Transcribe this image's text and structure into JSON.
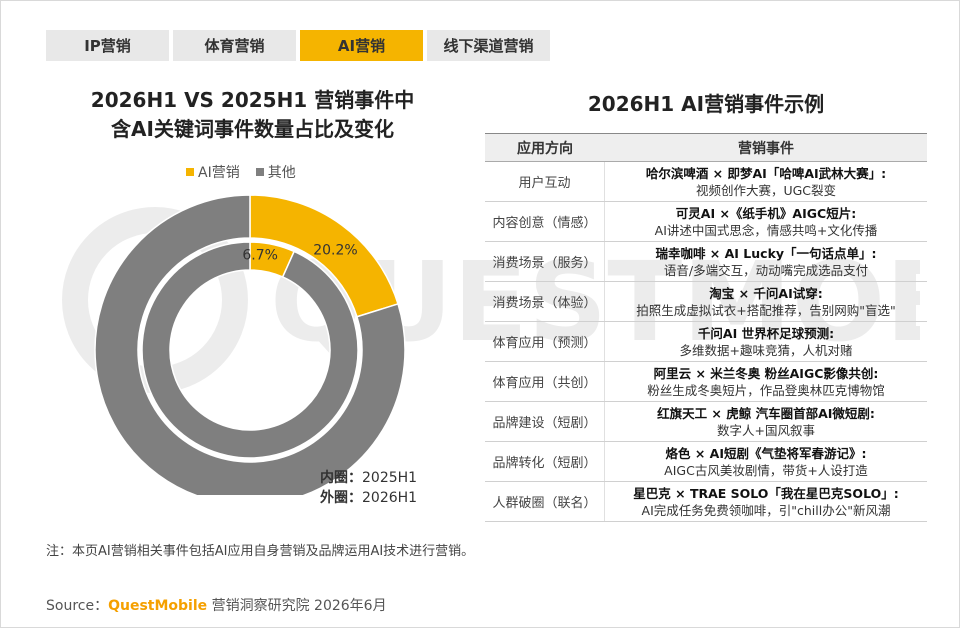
{
  "tabs": [
    {
      "label": "IP营销",
      "active": false
    },
    {
      "label": "体育营销",
      "active": false
    },
    {
      "label": "AI营销",
      "active": true
    },
    {
      "label": "线下渠道营销",
      "active": false
    }
  ],
  "watermark_text": "QUESTMOBILE",
  "chart_data": {
    "type": "pie",
    "title": "2026H1 VS 2025H1 营销事件中含AI关键词事件数量占比及变化",
    "title_lines": [
      "2026H1 VS 2025H1 营销事件中",
      "含AI关键词事件数量占比及变化"
    ],
    "legend": [
      "AI营销",
      "其他"
    ],
    "colors": {
      "ai": "#f5b400",
      "other": "#7f7f7f"
    },
    "rings": [
      {
        "ring": "inner",
        "period": "2025H1",
        "ai": 6.7,
        "other": 93.3,
        "label": "6.7%"
      },
      {
        "ring": "outer",
        "period": "2026H1",
        "ai": 20.2,
        "other": 79.8,
        "label": "20.2%"
      }
    ],
    "ring_legend": [
      {
        "key": "内圈：",
        "value": "2025H1"
      },
      {
        "key": "外圈：",
        "value": "2026H1"
      }
    ]
  },
  "table": {
    "title": "2026H1 AI营销事件示例",
    "headers": [
      "应用方向",
      "营销事件"
    ],
    "rows": [
      {
        "direction": "用户互动",
        "event": "哈尔滨啤酒 × 即梦AI「哈啤AI武林大赛」:",
        "desc": "视频创作大赛，UGC裂变"
      },
      {
        "direction": "内容创意（情感）",
        "event": "可灵AI ×《纸手机》AIGC短片:",
        "desc": "AI讲述中国式思念，情感共鸣+文化传播"
      },
      {
        "direction": "消费场景（服务）",
        "event": "瑞幸咖啡 × AI Lucky「一句话点单」:",
        "desc": "语音/多端交互，动动嘴完成选品支付"
      },
      {
        "direction": "消费场景（体验）",
        "event": "淘宝 × 千问AI试穿:",
        "desc": "拍照生成虚拟试衣+搭配推荐，告别网购\"盲选\""
      },
      {
        "direction": "体育应用（预测）",
        "event": "千问AI 世界杯足球预测:",
        "desc": "多维数据+趣味竞猜，人机对赌"
      },
      {
        "direction": "体育应用（共创）",
        "event": "阿里云 × 米兰冬奥 粉丝AIGC影像共创:",
        "desc": "粉丝生成冬奥短片，作品登奥林匹克博物馆"
      },
      {
        "direction": "品牌建设（短剧）",
        "event": "红旗天工 × 虎鲸 汽车圈首部AI微短剧:",
        "desc": "数字人+国风叙事"
      },
      {
        "direction": "品牌转化（短剧）",
        "event": "烙色 × AI短剧《气垫将军春游记》:",
        "desc": "AIGC古风美妆剧情，带货+人设打造"
      },
      {
        "direction": "人群破圈（联名）",
        "event": "星巴克 × TRAE SOLO「我在星巴克SOLO」:",
        "desc": "AI完成任务免费领咖啡，引\"chill办公\"新风潮"
      }
    ]
  },
  "note": "注：本页AI营销相关事件包括AI应用自身营销及品牌运用AI技术进行营销。",
  "source": {
    "prefix": "Source：",
    "brand": "QuestMobile",
    "rest": " 营销洞察研究院 2026年6月"
  }
}
